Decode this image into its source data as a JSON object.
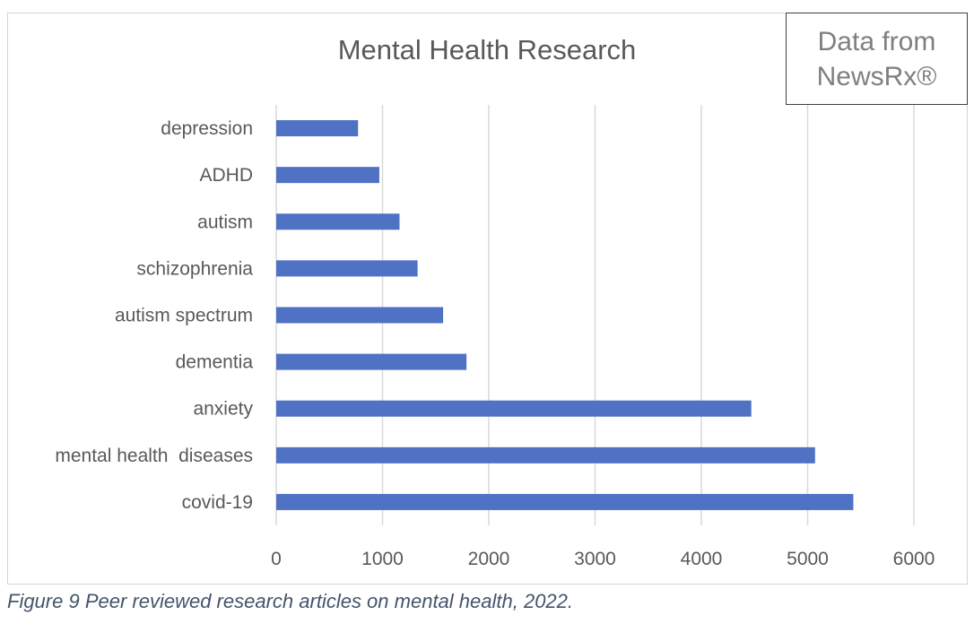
{
  "chart_data": {
    "type": "bar",
    "orientation": "horizontal",
    "title": "Mental Health Research",
    "categories": [
      "depression",
      "ADHD",
      "autism",
      "schizophrenia",
      "autism spectrum",
      "dementia",
      "anxiety",
      "mental health  diseases",
      "covid-19"
    ],
    "values": [
      770,
      970,
      1160,
      1330,
      1570,
      1790,
      4470,
      5070,
      5430
    ],
    "xlim": [
      0,
      6000
    ],
    "x_ticks": [
      "0",
      "1000",
      "2000",
      "3000",
      "4000",
      "5000",
      "6000"
    ],
    "grid": "vertical",
    "bar_color": "#4f72c4",
    "grid_color": "#d9d9d9"
  },
  "source_box": {
    "line1": "Data from",
    "line2": "NewsRx®"
  },
  "caption": "Figure 9 Peer reviewed research articles on mental health, 2022."
}
